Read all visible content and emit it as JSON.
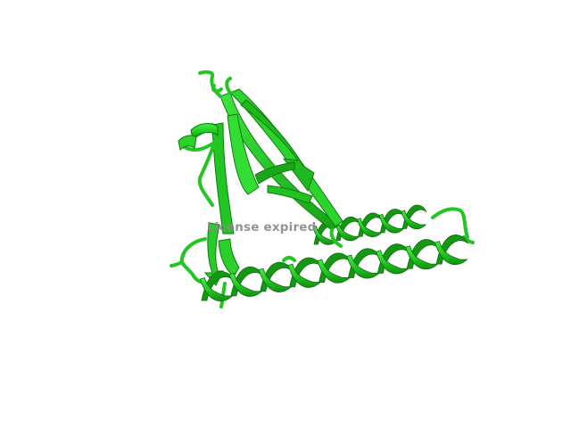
{
  "viewer": {
    "watermark_text": "License expired",
    "background_color": "#ffffff",
    "ribbon_color": "#22cc22",
    "ribbon_dark_color": "#129012",
    "ribbon_light_color": "#3ee83e"
  }
}
